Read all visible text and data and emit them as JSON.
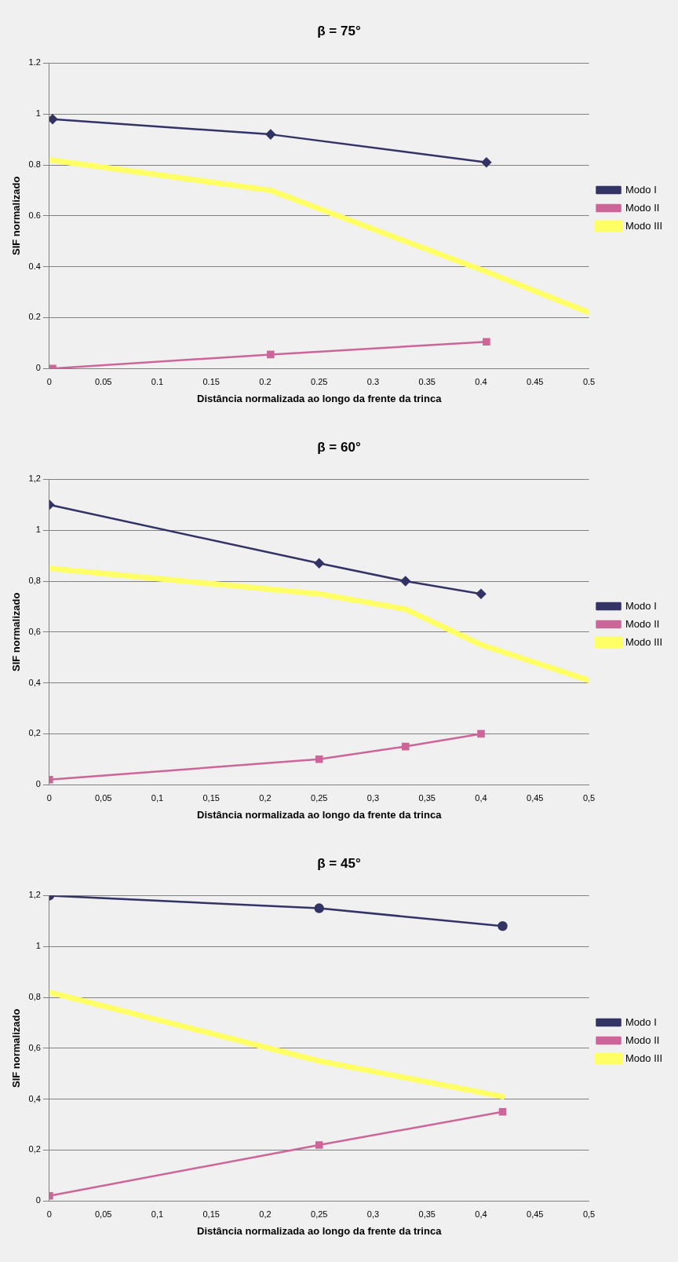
{
  "chart_data": [
    {
      "type": "line",
      "title": "β = 75°",
      "xlabel": "Distância normalizada ao longo da frente da trinca",
      "ylabel": "SIF normalizado",
      "xlim": [
        0,
        0.5
      ],
      "xticks": [
        0,
        0.05,
        0.1,
        0.15,
        0.2,
        0.25,
        0.3,
        0.35,
        0.4,
        0.45,
        0.5
      ],
      "ylim": [
        0,
        1.2
      ],
      "yticks": [
        0,
        0.2,
        0.4,
        0.6,
        0.8,
        1,
        1.2
      ],
      "grid": "y",
      "legend": "right",
      "series": [
        {
          "name": "Modo I",
          "color": "#333366",
          "marker": "diamond",
          "x": [
            0.003,
            0.205,
            0.405
          ],
          "values": [
            0.98,
            0.92,
            0.81
          ]
        },
        {
          "name": "Modo II",
          "color": "#cc6699",
          "marker": "square",
          "x": [
            0.003,
            0.205,
            0.405
          ],
          "values": [
            0,
            0.055,
            0.105
          ]
        },
        {
          "name": "Modo III",
          "color": "#ffff66",
          "marker": "none",
          "x": [
            0,
            0.205,
            0.405,
            0.5
          ],
          "values": [
            0.82,
            0.7,
            0.38,
            0.22
          ]
        }
      ]
    },
    {
      "type": "line",
      "title": "β = 60°",
      "xlabel": "Distância normalizada ao longo da frente da trinca",
      "ylabel": "SIF normalizado",
      "xlim": [
        0,
        0.5
      ],
      "xticks": [
        0,
        {
          "value": 0.05,
          "label": "0,05"
        },
        {
          "value": 0.1,
          "label": "0,1"
        },
        {
          "value": 0.15,
          "label": "0,15"
        },
        {
          "value": 0.2,
          "label": "0,2"
        },
        {
          "value": 0.25,
          "label": "0,25"
        },
        {
          "value": 0.3,
          "label": "0,3"
        },
        {
          "value": 0.35,
          "label": "0,35"
        },
        {
          "value": 0.4,
          "label": "0,4"
        },
        {
          "value": 0.45,
          "label": "0,45"
        },
        {
          "value": 0.5,
          "label": "0,5"
        }
      ],
      "ylim": [
        0,
        1.2
      ],
      "yticks": [
        0,
        {
          "value": 0.2,
          "label": "0,2"
        },
        {
          "value": 0.4,
          "label": "0,4"
        },
        {
          "value": 0.6,
          "label": "0,6"
        },
        {
          "value": 0.8,
          "label": "0,8"
        },
        1,
        {
          "value": 1.2,
          "label": "1,2"
        }
      ],
      "grid": "y",
      "legend": "right",
      "series": [
        {
          "name": "Modo I",
          "color": "#333366",
          "marker": "diamond",
          "x": [
            0,
            0.25,
            0.33,
            0.4
          ],
          "values": [
            1.1,
            0.87,
            0.8,
            0.75
          ]
        },
        {
          "name": "Modo II",
          "color": "#cc6699",
          "marker": "square",
          "x": [
            0,
            0.25,
            0.33,
            0.4
          ],
          "values": [
            0.02,
            0.1,
            0.15,
            0.2
          ]
        },
        {
          "name": "Modo III",
          "color": "#ffff66",
          "marker": "none",
          "x": [
            0,
            0.25,
            0.33,
            0.4,
            0.5
          ],
          "values": [
            0.85,
            0.75,
            0.69,
            0.55,
            0.41
          ]
        }
      ]
    },
    {
      "type": "line",
      "title": "β = 45°",
      "xlabel": "Distância normalizada ao longo da frente da trinca",
      "ylabel": "SIF normalizado",
      "xlim": [
        0,
        0.5
      ],
      "xticks": [
        0,
        {
          "value": 0.05,
          "label": "0,05"
        },
        {
          "value": 0.1,
          "label": "0,1"
        },
        {
          "value": 0.15,
          "label": "0,15"
        },
        {
          "value": 0.2,
          "label": "0,2"
        },
        {
          "value": 0.25,
          "label": "0,25"
        },
        {
          "value": 0.3,
          "label": "0,3"
        },
        {
          "value": 0.35,
          "label": "0,35"
        },
        {
          "value": 0.4,
          "label": "0,4"
        },
        {
          "value": 0.45,
          "label": "0,45"
        },
        {
          "value": 0.5,
          "label": "0,5"
        }
      ],
      "ylim": [
        0,
        1.2
      ],
      "yticks": [
        0,
        {
          "value": 0.2,
          "label": "0,2"
        },
        {
          "value": 0.4,
          "label": "0,4"
        },
        {
          "value": 0.6,
          "label": "0,6"
        },
        {
          "value": 0.8,
          "label": "0,8"
        },
        1,
        {
          "value": 1.2,
          "label": "1,2"
        }
      ],
      "grid": "y",
      "legend": "right",
      "series": [
        {
          "name": "Modo I",
          "color": "#333366",
          "marker": "circle",
          "x": [
            0,
            0.25,
            0.42
          ],
          "values": [
            1.2,
            1.15,
            1.08
          ]
        },
        {
          "name": "Modo II",
          "color": "#cc6699",
          "marker": "square",
          "x": [
            0,
            0.25,
            0.42
          ],
          "values": [
            0.02,
            0.22,
            0.35
          ]
        },
        {
          "name": "Modo III",
          "color": "#ffff66",
          "marker": "none",
          "x": [
            0,
            0.25,
            0.42
          ],
          "values": [
            0.82,
            0.55,
            0.41
          ]
        }
      ]
    }
  ]
}
